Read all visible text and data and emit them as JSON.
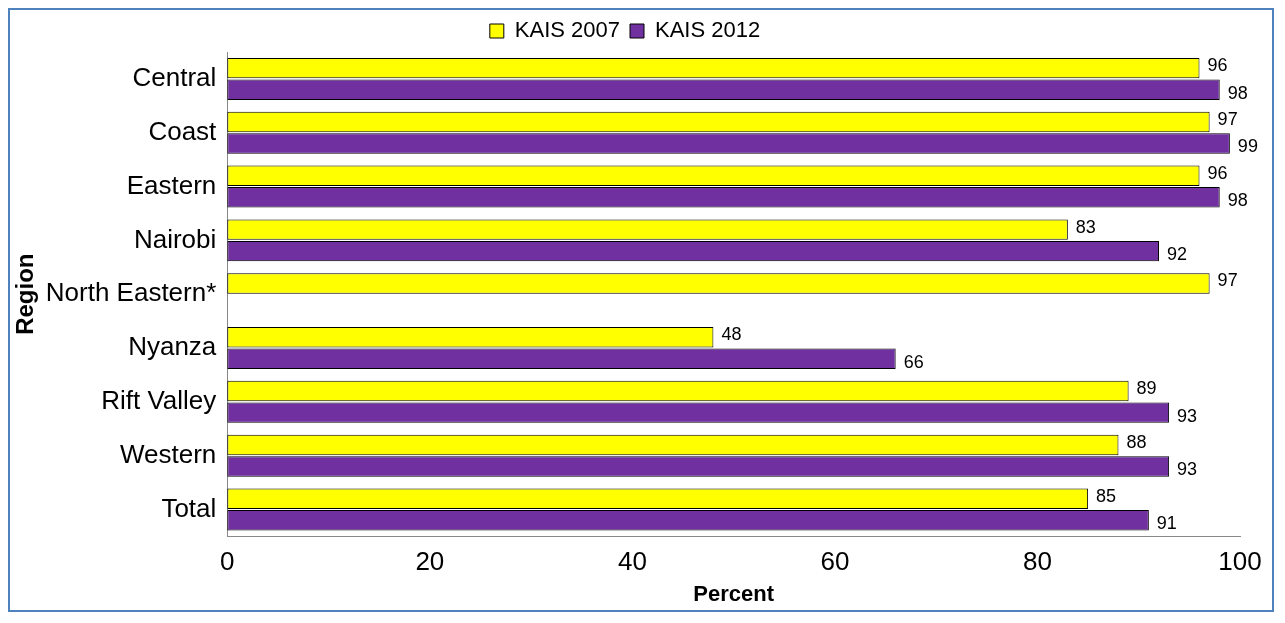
{
  "chart_data": {
    "type": "bar",
    "orientation": "horizontal",
    "xlabel": "Percent",
    "ylabel": "Region",
    "categories": [
      "Central",
      "Coast",
      "Eastern",
      "Nairobi",
      "North Eastern*",
      "Nyanza",
      "Rift Valley",
      "Western",
      "Total"
    ],
    "series": [
      {
        "name": "KAIS 2007",
        "color": "#ffff00",
        "values": [
          96,
          97,
          96,
          83,
          97,
          48,
          89,
          88,
          85
        ]
      },
      {
        "name": "KAIS 2012",
        "color": "#7030a0",
        "values": [
          98,
          99,
          98,
          92,
          null,
          66,
          93,
          93,
          91
        ]
      }
    ],
    "xlim": [
      0,
      100
    ],
    "xticks": [
      0,
      20,
      40,
      60,
      80,
      100
    ],
    "grid": false,
    "legend": "top",
    "data_labels": true
  }
}
